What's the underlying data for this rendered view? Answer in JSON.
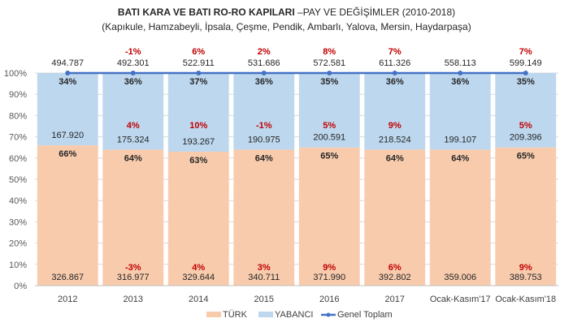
{
  "chart_data": {
    "type": "bar",
    "stacked": "percent",
    "title": "BATI KARA VE BATI RO-RO KAPILARI",
    "title_suffix": "–PAY VE DEĞİŞİMLER (2010-2018)",
    "subtitle": "(Kapıkule, Hamzabeyli, İpsala, Çeşme, Pendik, Ambarlı, Yalova, Mersin, Haydarpaşa)",
    "categories": [
      "2012",
      "2013",
      "2014",
      "2015",
      "2016",
      "2017",
      "Ocak-Kasım'17",
      "Ocak-Kasım'18"
    ],
    "ylim": [
      0,
      100
    ],
    "yticks": [
      "0%",
      "10%",
      "20%",
      "30%",
      "40%",
      "50%",
      "60%",
      "70%",
      "80%",
      "90%",
      "100%"
    ],
    "grid": true,
    "legend_position": "bottom",
    "series": [
      {
        "name": "TÜRK",
        "color": "#f8cbad",
        "values_label": [
          "326.867",
          "316.977",
          "329.644",
          "340.711",
          "371.990",
          "392.802",
          "359.006",
          "389.753"
        ],
        "values": [
          326867,
          316977,
          329644,
          340711,
          371990,
          392802,
          359006,
          389753
        ],
        "share": [
          66,
          64,
          63,
          64,
          65,
          64,
          64,
          65
        ],
        "share_labels": [
          "66%",
          "64%",
          "63%",
          "64%",
          "65%",
          "64%",
          "64%",
          "65%"
        ],
        "change_labels": [
          "",
          "-3%",
          "4%",
          "3%",
          "9%",
          "6%",
          "",
          "9%"
        ]
      },
      {
        "name": "YABANCI",
        "color": "#bdd7ee",
        "values_label": [
          "167.920",
          "175.324",
          "193.267",
          "190.975",
          "200.591",
          "218.524",
          "199.107",
          "209.396"
        ],
        "values": [
          167920,
          175324,
          193267,
          190975,
          200591,
          218524,
          199107,
          209396
        ],
        "share": [
          34,
          36,
          37,
          36,
          35,
          36,
          36,
          35
        ],
        "share_labels": [
          "34%",
          "36%",
          "37%",
          "36%",
          "35%",
          "36%",
          "36%",
          "35%"
        ],
        "change_labels": [
          "",
          "4%",
          "10%",
          "-1%",
          "5%",
          "9%",
          "",
          "5%"
        ]
      },
      {
        "name": "Genel Toplam",
        "color": "#4472c4",
        "kind": "line",
        "values_label": [
          "494.787",
          "492.301",
          "522.911",
          "531.686",
          "572.581",
          "611.326",
          "558.113",
          "599.149"
        ],
        "values": [
          494787,
          492301,
          522911,
          531686,
          572581,
          611326,
          558113,
          599149
        ],
        "change_labels": [
          "",
          "-1%",
          "6%",
          "2%",
          "8%",
          "7%",
          "",
          "7%"
        ]
      }
    ]
  }
}
